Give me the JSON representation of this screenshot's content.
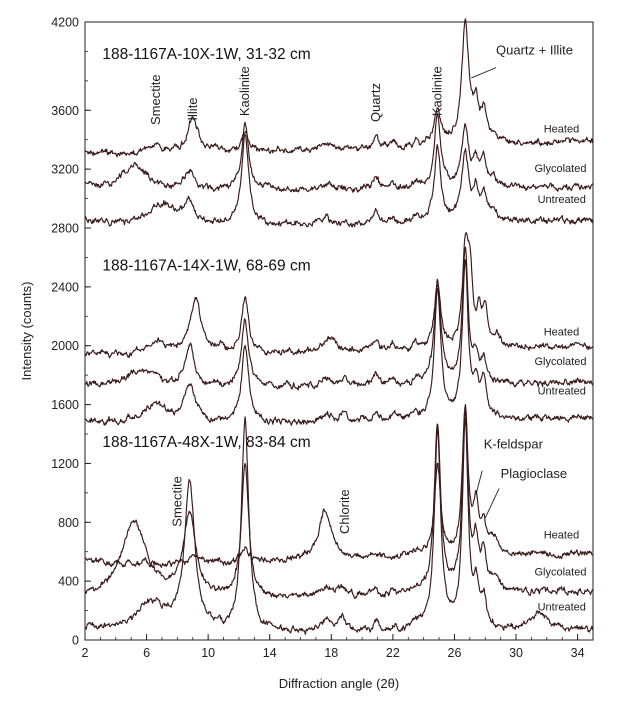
{
  "chart_data": {
    "type": "line",
    "title": "",
    "xlabel": "Diffraction angle (2θ)",
    "ylabel": "Intensity (counts)",
    "xlim": [
      2,
      35
    ],
    "ylim": [
      0,
      4200
    ],
    "xticks": [
      2,
      6,
      10,
      14,
      18,
      22,
      26,
      30,
      34
    ],
    "yticks": [
      0,
      400,
      800,
      1200,
      1600,
      2000,
      2400,
      2800,
      3200,
      3600,
      4200
    ],
    "grid": false,
    "legend": "none",
    "panels": [
      {
        "title": "188-1167A-10X-1W, 31-32 cm",
        "title_pos": [
          3,
          3950
        ],
        "series": [
          {
            "name": "Heated",
            "baseline": 3280,
            "end": 3390,
            "label_pos": [
              31.8,
              3450
            ],
            "peaks": [
              [
                6.5,
                60,
                0.6
              ],
              [
                9.0,
                240,
                0.45
              ],
              [
                10.5,
                30,
                0.3
              ],
              [
                12.4,
                130,
                0.28
              ],
              [
                17.7,
                30,
                0.4
              ],
              [
                20.9,
                90,
                0.2
              ],
              [
                22.0,
                40,
                0.2
              ],
              [
                23.5,
                40,
                0.2
              ],
              [
                24.9,
                230,
                0.25
              ],
              [
                26.7,
                810,
                0.28
              ],
              [
                27.4,
                240,
                0.2
              ],
              [
                27.9,
                200,
                0.2
              ],
              [
                28.5,
                60,
                0.3
              ]
            ]
          },
          {
            "name": "Glycolated",
            "baseline": 3040,
            "end": 3080,
            "label_pos": [
              31.2,
              3180
            ],
            "peaks": [
              [
                5.2,
                170,
                1.0
              ],
              [
                8.8,
                140,
                0.35
              ],
              [
                12.4,
                440,
                0.28
              ],
              [
                17.7,
                30,
                0.4
              ],
              [
                20.9,
                90,
                0.2
              ],
              [
                22.0,
                40,
                0.2
              ],
              [
                23.5,
                40,
                0.2
              ],
              [
                24.9,
                480,
                0.25
              ],
              [
                26.7,
                400,
                0.28
              ],
              [
                27.4,
                160,
                0.2
              ],
              [
                27.9,
                180,
                0.2
              ],
              [
                28.5,
                60,
                0.3
              ]
            ]
          },
          {
            "name": "Untreated",
            "baseline": 2800,
            "end": 2850,
            "label_pos": [
              31.4,
              2970
            ],
            "peaks": [
              [
                7.0,
                150,
                1.2
              ],
              [
                8.8,
                140,
                0.35
              ],
              [
                12.4,
                620,
                0.28
              ],
              [
                17.7,
                30,
                0.4
              ],
              [
                20.9,
                80,
                0.2
              ],
              [
                22.0,
                40,
                0.2
              ],
              [
                23.5,
                40,
                0.2
              ],
              [
                24.9,
                510,
                0.25
              ],
              [
                26.7,
                450,
                0.28
              ],
              [
                27.4,
                180,
                0.2
              ],
              [
                27.9,
                170,
                0.2
              ],
              [
                28.5,
                60,
                0.3
              ]
            ]
          }
        ]
      },
      {
        "title": "188-1167A-14X-1W, 68-69 cm",
        "title_pos": [
          3,
          2510
        ],
        "series": [
          {
            "name": "Heated",
            "baseline": 1910,
            "end": 2000,
            "label_pos": [
              31.8,
              2070
            ],
            "peaks": [
              [
                6.6,
                100,
                0.7
              ],
              [
                9.2,
                380,
                0.45
              ],
              [
                10.8,
                40,
                0.3
              ],
              [
                12.4,
                380,
                0.28
              ],
              [
                17.9,
                100,
                0.45
              ],
              [
                20.9,
                70,
                0.2
              ],
              [
                22.0,
                50,
                0.2
              ],
              [
                23.5,
                50,
                0.2
              ],
              [
                24.9,
                430,
                0.25
              ],
              [
                26.7,
                610,
                0.22
              ],
              [
                27.0,
                450,
                0.2
              ],
              [
                27.6,
                200,
                0.2
              ],
              [
                28.0,
                250,
                0.2
              ],
              [
                28.8,
                70,
                0.3
              ]
            ]
          },
          {
            "name": "Glycolated",
            "baseline": 1700,
            "end": 1750,
            "label_pos": [
              31.2,
              1870
            ],
            "peaks": [
              [
                5.3,
                80,
                0.9
              ],
              [
                6.3,
                80,
                0.6
              ],
              [
                8.8,
                280,
                0.38
              ],
              [
                12.4,
                460,
                0.28
              ],
              [
                17.7,
                50,
                0.4
              ],
              [
                18.8,
                50,
                0.3
              ],
              [
                20.9,
                70,
                0.2
              ],
              [
                22.0,
                40,
                0.2
              ],
              [
                23.5,
                40,
                0.2
              ],
              [
                24.9,
                690,
                0.25
              ],
              [
                26.7,
                900,
                0.22
              ],
              [
                27.4,
                150,
                0.2
              ],
              [
                27.9,
                160,
                0.2
              ]
            ]
          },
          {
            "name": "Untreated",
            "baseline": 1450,
            "end": 1510,
            "label_pos": [
              31.4,
              1670
            ],
            "peaks": [
              [
                6.5,
                120,
                1.0
              ],
              [
                8.8,
                270,
                0.45
              ],
              [
                12.4,
                520,
                0.28
              ],
              [
                17.7,
                50,
                0.4
              ],
              [
                18.8,
                50,
                0.3
              ],
              [
                20.9,
                70,
                0.2
              ],
              [
                22.0,
                40,
                0.2
              ],
              [
                23.5,
                40,
                0.2
              ],
              [
                24.9,
                880,
                0.25
              ],
              [
                26.7,
                1050,
                0.22
              ],
              [
                27.4,
                220,
                0.2
              ],
              [
                27.9,
                260,
                0.2
              ]
            ]
          }
        ]
      },
      {
        "title": "188-1167A-48X-1W, 83-84 cm",
        "title_pos": [
          3,
          1310
        ],
        "series": [
          {
            "name": "Heated",
            "baseline": 500,
            "end": 590,
            "label_pos": [
              31.8,
              690
            ],
            "peaks": [
              [
                9.2,
                60,
                0.5
              ],
              [
                12.4,
                90,
                0.28
              ],
              [
                17.6,
                340,
                0.5
              ],
              [
                20.9,
                40,
                0.2
              ],
              [
                23.5,
                40,
                0.2
              ],
              [
                24.9,
                600,
                0.25
              ],
              [
                26.7,
                1000,
                0.22
              ],
              [
                27.4,
                320,
                0.2
              ],
              [
                27.9,
                200,
                0.2
              ],
              [
                28.6,
                100,
                0.3
              ]
            ]
          },
          {
            "name": "Glycolated",
            "baseline": 250,
            "end": 330,
            "label_pos": [
              31.2,
              440
            ],
            "peaks": [
              [
                5.2,
                520,
                1.0
              ],
              [
                8.8,
                550,
                0.5
              ],
              [
                12.4,
                900,
                0.28
              ],
              [
                17.7,
                60,
                0.4
              ],
              [
                18.7,
                60,
                0.3
              ],
              [
                20.9,
                50,
                0.2
              ],
              [
                22.0,
                30,
                0.2
              ],
              [
                23.5,
                40,
                0.2
              ],
              [
                24.9,
                1150,
                0.25
              ],
              [
                26.7,
                1200,
                0.22
              ],
              [
                27.4,
                300,
                0.2
              ],
              [
                27.9,
                250,
                0.2
              ],
              [
                28.6,
                100,
                0.3
              ]
            ]
          },
          {
            "name": "Untreated",
            "baseline": 30,
            "end": 70,
            "label_pos": [
              31.4,
              200
            ],
            "peaks": [
              [
                6.3,
                200,
                1.2
              ],
              [
                8.8,
                1000,
                0.4
              ],
              [
                12.4,
                1450,
                0.28
              ],
              [
                17.7,
                80,
                0.4
              ],
              [
                18.7,
                90,
                0.3
              ],
              [
                20.9,
                60,
                0.2
              ],
              [
                22.0,
                30,
                0.2
              ],
              [
                23.5,
                60,
                0.2
              ],
              [
                24.9,
                1350,
                0.25
              ],
              [
                26.7,
                1400,
                0.22
              ],
              [
                27.4,
                250,
                0.2
              ],
              [
                27.9,
                200,
                0.2
              ],
              [
                31.5,
                120,
                0.6
              ]
            ]
          }
        ]
      }
    ],
    "annotations": [
      {
        "text": "Smectite",
        "x": 6.6,
        "y": 3500,
        "rotate": -90
      },
      {
        "text": "Illite",
        "x": 9.0,
        "y": 3530,
        "rotate": -90
      },
      {
        "text": "Kaolinite",
        "x": 12.4,
        "y": 3560,
        "rotate": -90
      },
      {
        "text": "Quartz",
        "x": 20.9,
        "y": 3520,
        "rotate": -90
      },
      {
        "text": "Kaolinite",
        "x": 24.9,
        "y": 3560,
        "rotate": -90
      },
      {
        "text": "Quartz + Illite",
        "x": 28.7,
        "y": 3980,
        "rotate": 0
      },
      {
        "text": "K-feldspar",
        "x": 27.9,
        "y": 1300,
        "rotate": 0
      },
      {
        "text": "Plagioclase",
        "x": 29.0,
        "y": 1100,
        "rotate": 0
      },
      {
        "text": "Smectite",
        "x": 8.0,
        "y": 770,
        "rotate": -90
      },
      {
        "text": "Chlorite",
        "x": 18.9,
        "y": 720,
        "rotate": -90
      }
    ],
    "pointers": [
      {
        "from": [
          28.7,
          3890
        ],
        "to": [
          27.1,
          3820
        ]
      },
      {
        "from": [
          27.8,
          1150
        ],
        "to": [
          27.4,
          990
        ]
      },
      {
        "from": [
          28.9,
          1030
        ],
        "to": [
          28.0,
          830
        ]
      }
    ]
  }
}
